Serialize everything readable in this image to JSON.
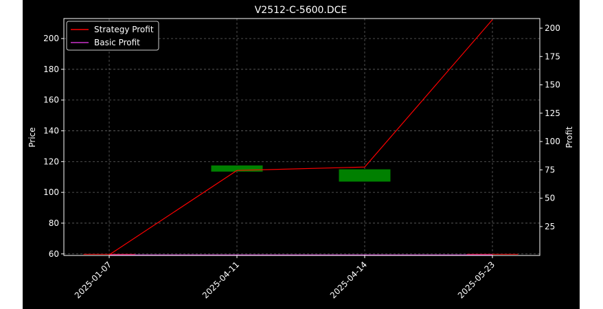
{
  "chart_data": {
    "type": "candlestick+line",
    "title": "V2512-C-5600.DCE",
    "xlabel": "",
    "ylabel_left": "Price",
    "ylabel_right": "Profit",
    "categories": [
      "2025-01-07",
      "2025-04-11",
      "2025-04-14",
      "2025-05-23"
    ],
    "y_left": {
      "ticks": [
        60,
        80,
        100,
        120,
        140,
        160,
        180,
        200
      ],
      "range": [
        59,
        213
      ]
    },
    "y_right": {
      "ticks": [
        25,
        50,
        75,
        100,
        125,
        150,
        175,
        200
      ],
      "range": [
        -0.5,
        208.5
      ]
    },
    "candles": [
      {
        "x": "2025-01-07",
        "open": 60,
        "close": 60,
        "high": 60,
        "low": 60,
        "color": "#cc0000"
      },
      {
        "x": "2025-04-11",
        "open": 113.5,
        "close": 117.5,
        "high": 117.5,
        "low": 113.5,
        "color": "#008000"
      },
      {
        "x": "2025-04-14",
        "open": 107,
        "close": 115,
        "high": 115,
        "low": 107,
        "color": "#008000"
      },
      {
        "x": "2025-05-23",
        "open": 60,
        "close": 60,
        "high": 60,
        "low": 60,
        "color": "#cc0000"
      }
    ],
    "series": [
      {
        "name": "Strategy Profit",
        "axis": "right",
        "color": "#ff0000",
        "values": [
          0,
          74.5,
          77.5,
          207.5
        ]
      },
      {
        "name": "Basic Profit",
        "axis": "right",
        "color": "#cc33cc",
        "values": [
          0,
          0,
          0,
          0
        ]
      }
    ],
    "grid": true,
    "legend": "top-left"
  }
}
